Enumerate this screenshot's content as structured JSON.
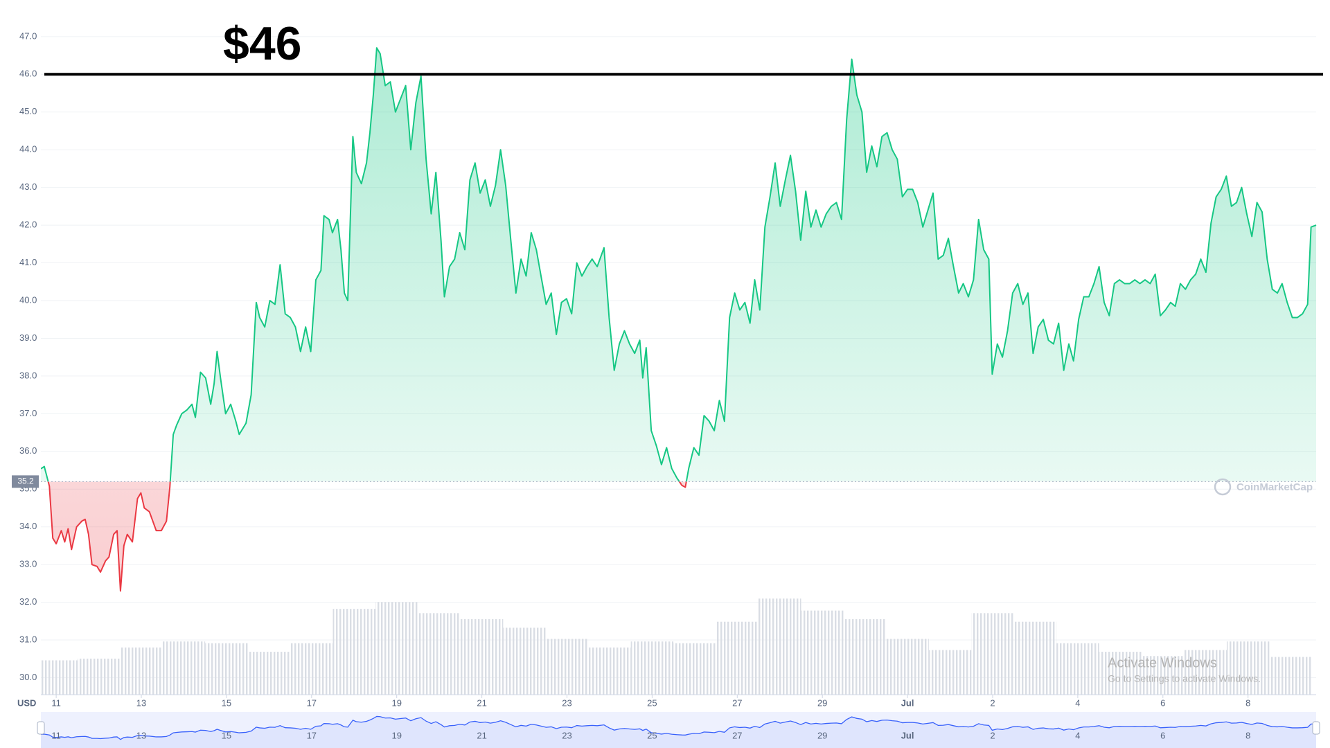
{
  "chart_data": {
    "type": "line",
    "x": [
      10.64,
      10.72,
      10.84,
      10.92,
      11.0,
      11.12,
      11.2,
      11.28,
      11.36,
      11.48,
      11.6,
      11.68,
      11.76,
      11.84,
      11.96,
      12.04,
      12.16,
      12.24,
      12.35,
      12.43,
      12.51,
      12.59,
      12.67,
      12.79,
      12.91,
      12.99,
      13.07,
      13.19,
      13.35,
      13.47,
      13.59,
      13.67,
      13.75,
      13.83,
      13.95,
      14.07,
      14.19,
      14.27,
      14.39,
      14.51,
      14.63,
      14.71,
      14.78,
      14.86,
      14.98,
      15.1,
      15.22,
      15.3,
      15.46,
      15.58,
      15.7,
      15.78,
      15.9,
      16.02,
      16.14,
      16.26,
      16.38,
      16.5,
      16.62,
      16.74,
      16.86,
      16.98,
      17.1,
      17.22,
      17.29,
      17.41,
      17.49,
      17.61,
      17.69,
      17.77,
      17.85,
      17.97,
      18.05,
      18.17,
      18.29,
      18.37,
      18.45,
      18.53,
      18.61,
      18.73,
      18.85,
      18.97,
      19.09,
      19.21,
      19.33,
      19.45,
      19.57,
      19.69,
      19.81,
      19.92,
      20.04,
      20.12,
      20.24,
      20.36,
      20.48,
      20.6,
      20.72,
      20.84,
      20.96,
      21.08,
      21.2,
      21.32,
      21.44,
      21.56,
      21.68,
      21.8,
      21.92,
      22.04,
      22.16,
      22.28,
      22.39,
      22.51,
      22.63,
      22.75,
      22.87,
      22.99,
      23.11,
      23.23,
      23.35,
      23.47,
      23.59,
      23.71,
      23.87,
      23.99,
      24.11,
      24.23,
      24.35,
      24.47,
      24.59,
      24.71,
      24.78,
      24.86,
      24.98,
      25.1,
      25.22,
      25.34,
      25.46,
      25.58,
      25.7,
      25.78,
      25.86,
      25.98,
      26.1,
      26.22,
      26.34,
      26.46,
      26.58,
      26.7,
      26.82,
      26.94,
      27.06,
      27.18,
      27.3,
      27.41,
      27.53,
      27.65,
      27.77,
      27.89,
      28.01,
      28.13,
      28.25,
      28.37,
      28.49,
      28.61,
      28.73,
      28.85,
      28.97,
      29.09,
      29.21,
      29.33,
      29.45,
      29.57,
      29.69,
      29.81,
      29.93,
      30.04,
      30.16,
      30.28,
      30.4,
      30.52,
      30.64,
      30.76,
      30.88,
      31.0,
      31.12,
      31.24,
      31.36,
      31.48,
      31.6,
      31.72,
      31.84,
      31.96,
      32.08,
      32.2,
      32.31,
      32.43,
      32.55,
      32.67,
      32.79,
      32.91,
      32.99,
      33.11,
      33.23,
      33.35,
      33.47,
      33.59,
      33.71,
      33.83,
      33.95,
      34.07,
      34.19,
      34.31,
      34.43,
      34.55,
      34.67,
      34.79,
      34.9,
      35.02,
      35.14,
      35.26,
      35.38,
      35.5,
      35.62,
      35.74,
      35.86,
      35.98,
      36.1,
      36.22,
      36.34,
      36.46,
      36.58,
      36.7,
      36.82,
      36.94,
      37.06,
      37.18,
      37.29,
      37.41,
      37.53,
      37.65,
      37.77,
      37.89,
      38.01,
      38.13,
      38.25,
      38.37,
      38.49,
      38.61,
      38.73,
      38.85,
      38.97,
      39.09,
      39.21,
      39.33,
      39.45,
      39.57,
      39.69,
      39.8,
      39.92,
      40.04,
      40.16,
      40.28,
      40.4,
      40.48,
      40.6
    ],
    "series": [
      {
        "color": "#16c784",
        "below_color": "#ea3943",
        "values": [
          35.54,
          35.6,
          35.08,
          33.7,
          33.55,
          33.9,
          33.6,
          33.95,
          33.4,
          34.0,
          34.15,
          34.2,
          33.8,
          33.0,
          32.95,
          32.8,
          33.1,
          33.2,
          33.8,
          33.9,
          32.3,
          33.5,
          33.8,
          33.6,
          34.75,
          34.9,
          34.5,
          34.4,
          33.9,
          33.9,
          34.15,
          35.05,
          36.45,
          36.7,
          37.0,
          37.1,
          37.25,
          36.9,
          38.1,
          37.95,
          37.25,
          37.8,
          38.65,
          37.95,
          37.0,
          37.25,
          36.8,
          36.45,
          36.75,
          37.5,
          39.95,
          39.55,
          39.3,
          40.0,
          39.9,
          40.95,
          39.65,
          39.55,
          39.3,
          38.65,
          39.3,
          38.65,
          40.55,
          40.8,
          42.25,
          42.15,
          41.8,
          42.15,
          41.35,
          40.2,
          40.0,
          44.35,
          43.4,
          43.1,
          43.65,
          44.45,
          45.45,
          46.7,
          46.55,
          45.7,
          45.8,
          45.0,
          45.35,
          45.7,
          44.0,
          45.25,
          45.95,
          43.75,
          42.3,
          43.4,
          41.6,
          40.1,
          40.9,
          41.1,
          41.8,
          41.35,
          43.2,
          43.65,
          42.85,
          43.2,
          42.5,
          43.05,
          44.0,
          43.05,
          41.6,
          40.2,
          41.1,
          40.65,
          41.8,
          41.35,
          40.65,
          39.9,
          40.2,
          39.1,
          39.95,
          40.05,
          39.65,
          41.0,
          40.65,
          40.9,
          41.1,
          40.9,
          41.4,
          39.55,
          38.15,
          38.85,
          39.2,
          38.85,
          38.6,
          38.95,
          37.95,
          38.75,
          36.55,
          36.15,
          35.65,
          36.1,
          35.55,
          35.3,
          35.1,
          35.05,
          35.55,
          36.1,
          35.9,
          36.95,
          36.8,
          36.55,
          37.35,
          36.8,
          39.55,
          40.2,
          39.75,
          39.95,
          39.4,
          40.55,
          39.75,
          41.95,
          42.75,
          43.65,
          42.5,
          43.2,
          43.85,
          42.9,
          41.6,
          42.9,
          41.95,
          42.4,
          41.95,
          42.3,
          42.5,
          42.6,
          42.15,
          44.8,
          46.4,
          45.45,
          45.0,
          43.4,
          44.1,
          43.55,
          44.35,
          44.45,
          44.0,
          43.75,
          42.75,
          42.95,
          42.95,
          42.6,
          41.95,
          42.4,
          42.85,
          41.1,
          41.2,
          41.65,
          40.9,
          40.2,
          40.45,
          40.1,
          40.55,
          42.15,
          41.35,
          41.1,
          38.05,
          38.85,
          38.5,
          39.2,
          40.2,
          40.45,
          39.9,
          40.2,
          38.6,
          39.3,
          39.5,
          38.95,
          38.85,
          39.4,
          38.15,
          38.85,
          38.4,
          39.5,
          40.1,
          40.1,
          40.45,
          40.9,
          39.95,
          39.6,
          40.45,
          40.55,
          40.45,
          40.45,
          40.55,
          40.45,
          40.55,
          40.45,
          40.7,
          39.6,
          39.75,
          39.95,
          39.85,
          40.45,
          40.3,
          40.55,
          40.7,
          41.1,
          40.75,
          42.05,
          42.75,
          42.95,
          43.3,
          42.5,
          42.6,
          43.0,
          42.3,
          41.7,
          42.6,
          42.35,
          41.1,
          40.3,
          40.2,
          40.45,
          39.95,
          39.55,
          39.55,
          39.65,
          39.9,
          41.95,
          42.0
        ]
      },
      {
        "type": "bar",
        "axis": "y2",
        "color": "#d9dde4",
        "x": [
          11,
          12,
          13,
          14,
          15,
          16,
          17,
          18,
          19,
          20,
          21,
          22,
          23,
          24,
          25,
          26,
          27,
          28,
          29,
          30,
          31,
          32,
          33,
          34,
          35,
          36,
          37,
          38,
          39,
          40
        ],
        "values": [
          40,
          42,
          55,
          62,
          60,
          50,
          60,
          100,
          108,
          95,
          88,
          78,
          65,
          55,
          62,
          60,
          85,
          112,
          98,
          88,
          65,
          52,
          95,
          85,
          60,
          50,
          45,
          52,
          62,
          44
        ]
      }
    ],
    "xlim": [
      10.64,
      40.6
    ],
    "xticks": [
      11,
      13,
      15,
      17,
      19,
      21,
      23,
      25,
      27,
      29,
      {
        "value": 31,
        "label": "Jul"
      },
      {
        "value": 33,
        "label": "2"
      },
      {
        "value": 35,
        "label": "4"
      },
      {
        "value": 37,
        "label": "6"
      },
      {
        "value": 39,
        "label": "8"
      }
    ],
    "ylim": [
      29.55,
      47.75
    ],
    "yticks": [
      {
        "value": 30,
        "label": "30.0"
      },
      {
        "value": 31,
        "label": "31.0"
      },
      {
        "value": 32,
        "label": "32.0"
      },
      {
        "value": 33,
        "label": "33.0"
      },
      {
        "value": 34,
        "label": "34.0"
      },
      {
        "value": 35,
        "label": "35.0"
      },
      {
        "value": 36,
        "label": "36.0"
      },
      {
        "value": 37,
        "label": "37.0"
      },
      {
        "value": 38,
        "label": "38.0"
      },
      {
        "value": 39,
        "label": "39.0"
      },
      {
        "value": 40,
        "label": "40.0"
      },
      {
        "value": 41,
        "label": "41.0"
      },
      {
        "value": 42,
        "label": "42.0"
      },
      {
        "value": 43,
        "label": "43.0"
      },
      {
        "value": 44,
        "label": "44.0"
      },
      {
        "value": 45,
        "label": "45.0"
      },
      {
        "value": 46,
        "label": "46.0"
      },
      {
        "value": 47,
        "label": "47.0"
      }
    ],
    "y2lim": [
      0,
      800
    ],
    "grid": true,
    "axis_unit": "USD",
    "baseline": 35.2,
    "annotation": {
      "text": "$46",
      "value": 46
    },
    "watermark": "CoinMarketCap"
  },
  "overlay": {
    "title": "Activate Windows",
    "subtitle": "Go to Settings to activate Windows."
  }
}
